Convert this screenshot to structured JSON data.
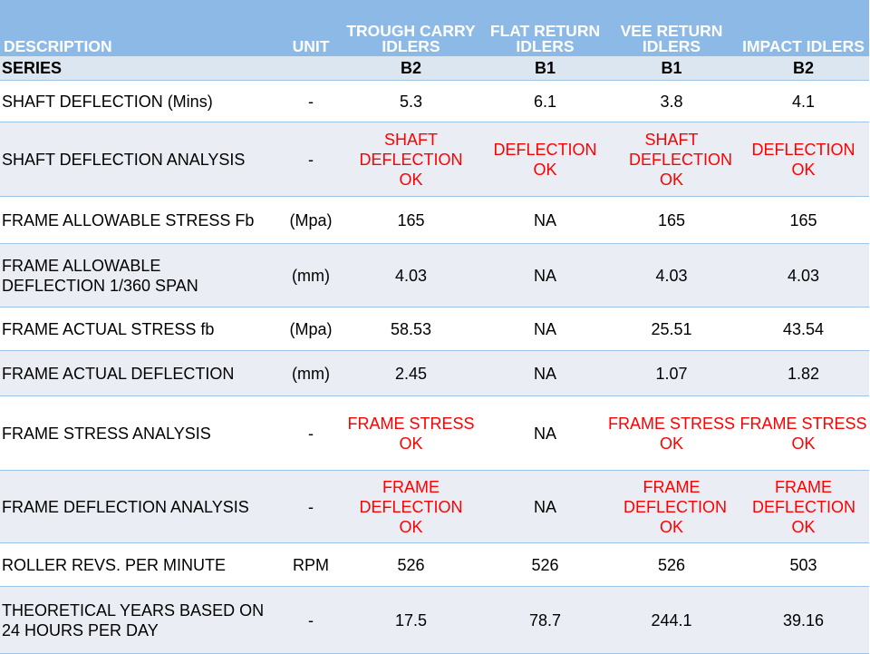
{
  "headers": {
    "description": "DESCRIPTION",
    "unit": "UNIT",
    "trough": "TROUGH CARRY IDLERS",
    "flat": "FLAT RETURN IDLERS",
    "vee": "VEE RETURN IDLERS",
    "impact": "IMPACT IDLERS"
  },
  "series": {
    "label": "SERIES",
    "trough": "B2",
    "flat": "B1",
    "vee": "B1",
    "impact": "B2"
  },
  "rows": [
    {
      "desc": "SHAFT DEFLECTION (Mins)",
      "unit": "-",
      "trough": "5.3",
      "flat": "6.1",
      "vee": "3.8",
      "impact": "4.1"
    },
    {
      "desc": "SHAFT DEFLECTION ANALYSIS",
      "unit": "-",
      "trough": "SHAFT DEFLECTION OK",
      "flat": "DEFLECTION OK",
      "vee": "SHAFT DEFLECTION OK",
      "impact": "DEFLECTION OK"
    },
    {
      "desc": "FRAME ALLOWABLE STRESS Fb",
      "unit": "(Mpa)",
      "trough": "165",
      "flat": "NA",
      "vee": "165",
      "impact": "165"
    },
    {
      "desc": "FRAME ALLOWABLE DEFLECTION 1/360 SPAN",
      "unit": "(mm)",
      "trough": "4.03",
      "flat": "NA",
      "vee": "4.03",
      "impact": "4.03"
    },
    {
      "desc": "FRAME ACTUAL STRESS fb",
      "unit": "(Mpa)",
      "trough": "58.53",
      "flat": "NA",
      "vee": "25.51",
      "impact": "43.54"
    },
    {
      "desc": "FRAME ACTUAL DEFLECTION",
      "unit": "(mm)",
      "trough": "2.45",
      "flat": "NA",
      "vee": "1.07",
      "impact": "1.82"
    },
    {
      "desc": "FRAME STRESS ANALYSIS",
      "unit": "-",
      "trough": "FRAME STRESS OK",
      "flat": "NA",
      "vee": "FRAME STRESS OK",
      "impact": "FRAME STRESS OK"
    },
    {
      "desc": "FRAME DEFLECTION ANALYSIS",
      "unit": "-",
      "trough": "FRAME DEFLECTION OK",
      "flat": "NA",
      "vee": "FRAME DEFLECTION OK",
      "impact": "FRAME DEFLECTION OK"
    },
    {
      "desc": "ROLLER REVS. PER MINUTE",
      "unit": "RPM",
      "trough": "526",
      "flat": "526",
      "vee": "526",
      "impact": "503"
    },
    {
      "desc": "THEORETICAL YEARS BASED ON 24 HOURS PER DAY",
      "unit": "-",
      "trough": "17.5",
      "flat": "78.7",
      "vee": "244.1",
      "impact": "39.16"
    }
  ],
  "colors": {
    "header_bg": "#8db9e6",
    "row_alt_bg": "#eaeef4",
    "ok_text": "#ff0000"
  }
}
